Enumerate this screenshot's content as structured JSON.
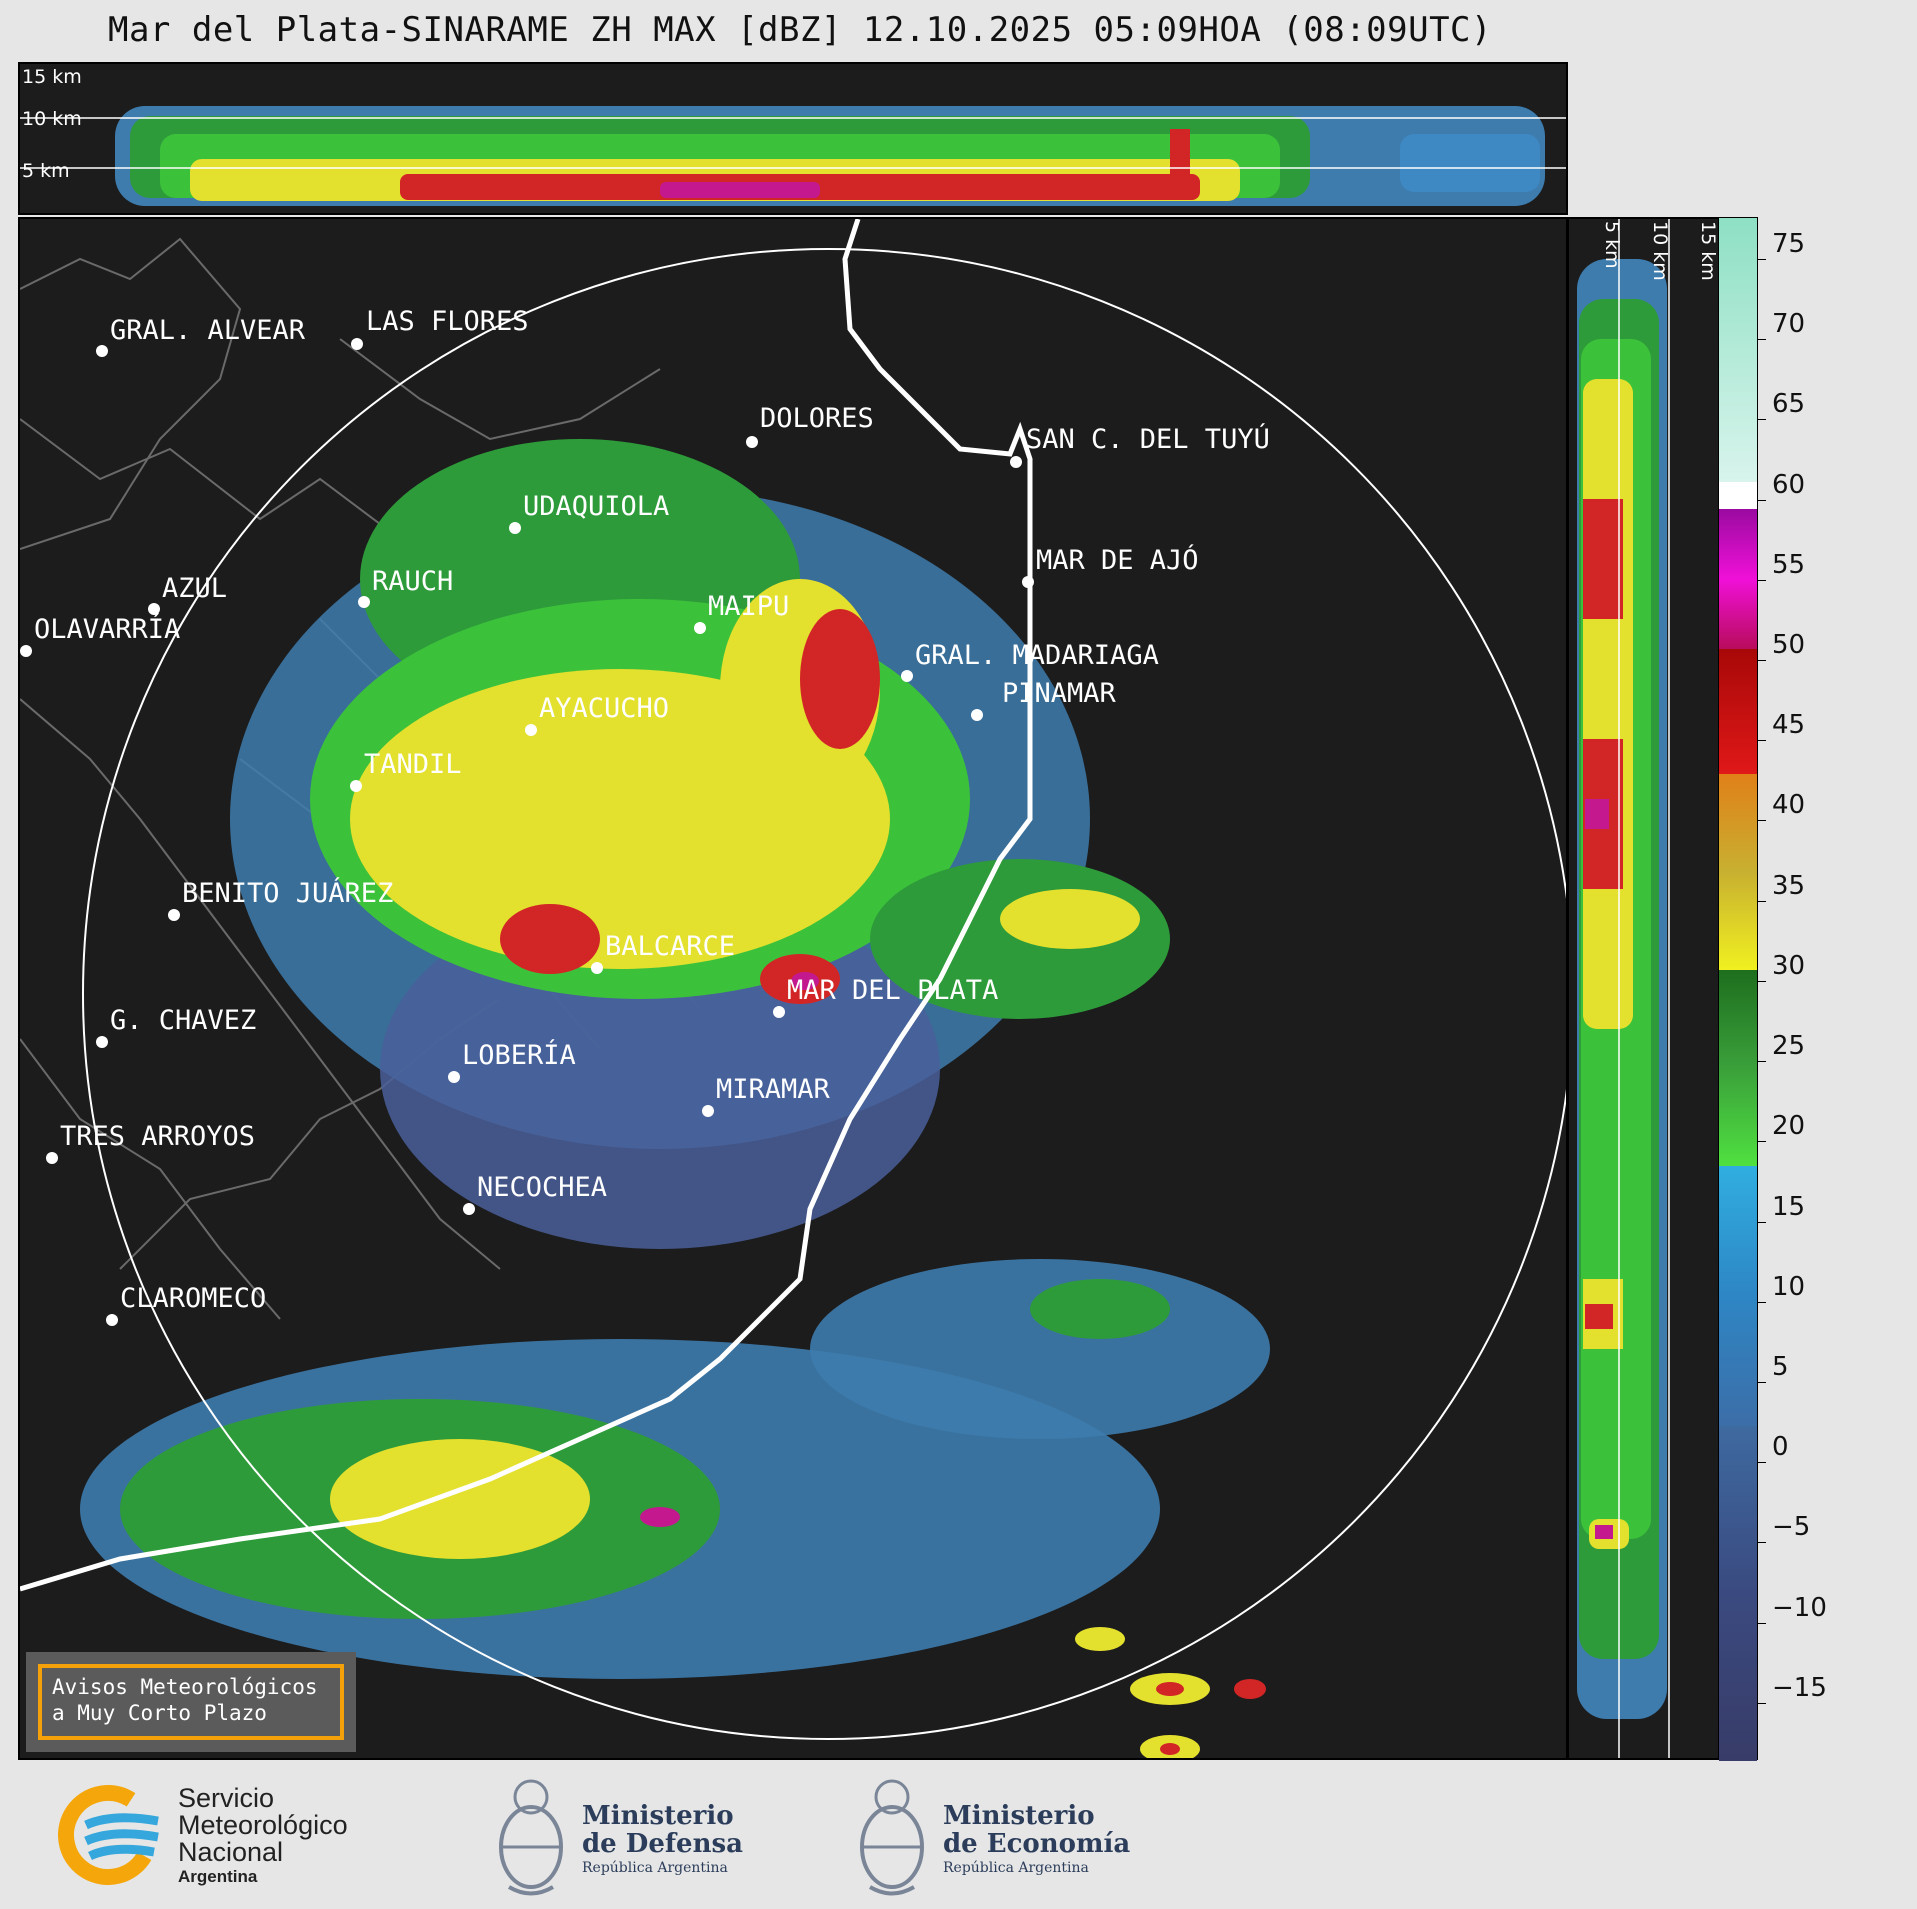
{
  "title": "Mar del Plata-SINARAME ZH MAX [dBZ] 12.10.2025 05:09HOA (08:09UTC)",
  "top_panel": {
    "height_labels": [
      "15 km",
      "10 km",
      "5 km"
    ]
  },
  "side_panel": {
    "height_labels": [
      "5 km",
      "10 km",
      "15 km"
    ]
  },
  "colorbar": {
    "unit": "dBZ",
    "ticks": [
      "75",
      "70",
      "65",
      "60",
      "55",
      "50",
      "45",
      "40",
      "35",
      "30",
      "25",
      "20",
      "15",
      "10",
      "5",
      "0",
      "−5",
      "−10",
      "−15"
    ],
    "min": -19,
    "max": 76.5
  },
  "cities": [
    {
      "name": "GRAL. ALVEAR"
    },
    {
      "name": "LAS FLORES"
    },
    {
      "name": "DOLORES"
    },
    {
      "name": "SAN C. DEL TUYÚ"
    },
    {
      "name": "UDAQUIOLA"
    },
    {
      "name": "MAR DE AJÓ"
    },
    {
      "name": "RAUCH"
    },
    {
      "name": "AZUL"
    },
    {
      "name": "MAIPU"
    },
    {
      "name": "OLAVARRÍA"
    },
    {
      "name": "GRAL. MADARIAGA"
    },
    {
      "name": "PINAMAR"
    },
    {
      "name": "AYACUCHO"
    },
    {
      "name": "TANDIL"
    },
    {
      "name": "BENITO JUÁREZ"
    },
    {
      "name": "BALCARCE"
    },
    {
      "name": "MAR DEL PLATA"
    },
    {
      "name": "G. CHAVEZ"
    },
    {
      "name": "LOBERÍA"
    },
    {
      "name": "MIRAMAR"
    },
    {
      "name": "TRES ARROYOS"
    },
    {
      "name": "NECOCHEA"
    },
    {
      "name": "CLAROMECO"
    }
  ],
  "avisos": {
    "line1": "Avisos Meteorológicos",
    "line2": "a Muy Corto Plazo"
  },
  "footer": {
    "smn": {
      "line1": "Servicio",
      "line2": "Meteorológico",
      "line3": "Nacional",
      "line4": "Argentina"
    },
    "defensa": {
      "line1": "Ministerio",
      "line2": "de Defensa",
      "line3": "República Argentina"
    },
    "economia": {
      "line1": "Ministerio",
      "line2": "de Economía",
      "line3": "República Argentina"
    }
  }
}
